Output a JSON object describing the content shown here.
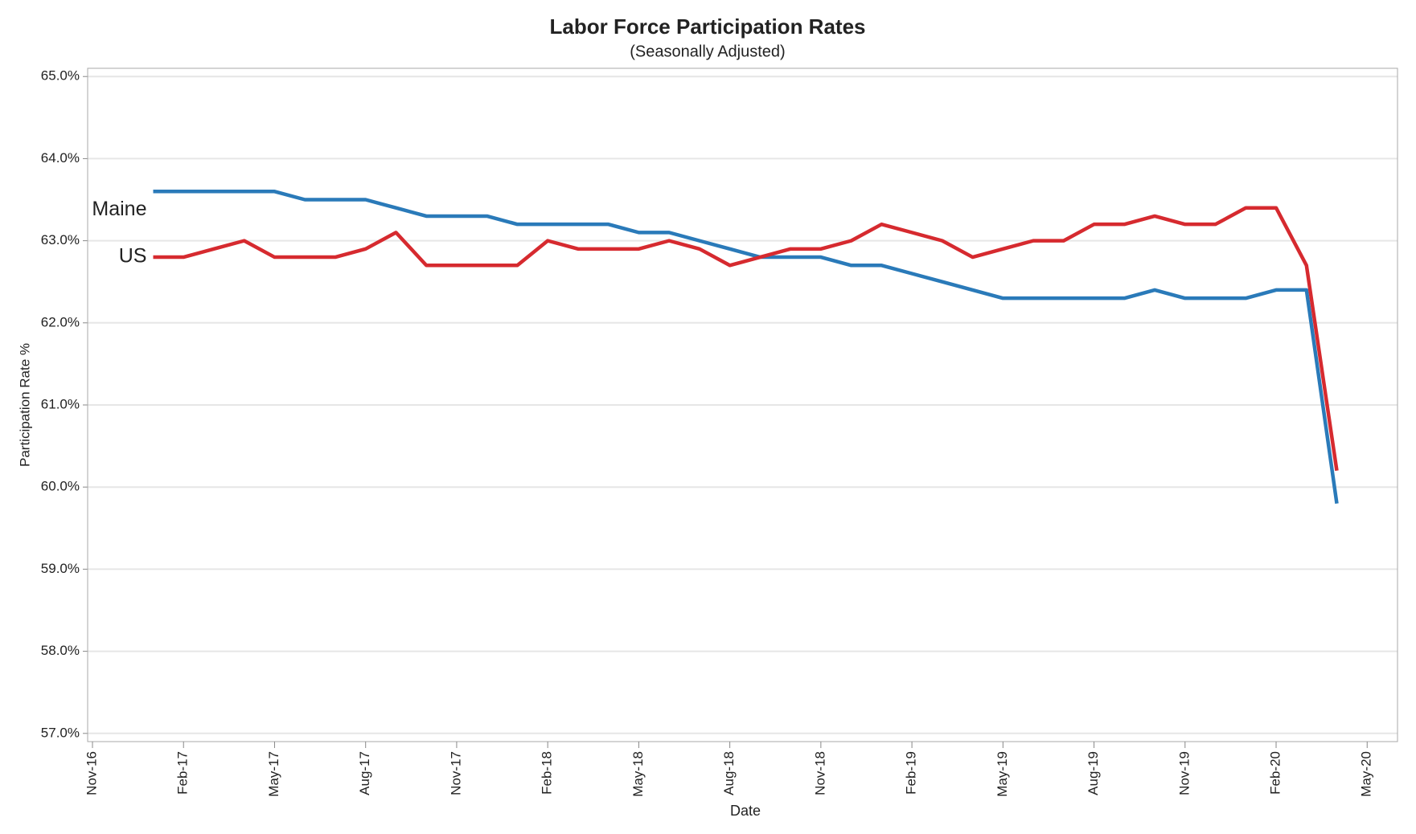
{
  "chart_data": {
    "type": "line",
    "title": "Labor Force Participation Rates",
    "subtitle": "(Seasonally Adjusted)",
    "x_label": "Date",
    "y_label": "Participation Rate %",
    "x": [
      "2017-01",
      "2017-02",
      "2017-03",
      "2017-04",
      "2017-05",
      "2017-06",
      "2017-07",
      "2017-08",
      "2017-09",
      "2017-10",
      "2017-11",
      "2017-12",
      "2018-01",
      "2018-02",
      "2018-03",
      "2018-04",
      "2018-05",
      "2018-06",
      "2018-07",
      "2018-08",
      "2018-09",
      "2018-10",
      "2018-11",
      "2018-12",
      "2019-01",
      "2019-02",
      "2019-03",
      "2019-04",
      "2019-05",
      "2019-06",
      "2019-07",
      "2019-08",
      "2019-09",
      "2019-10",
      "2019-11",
      "2019-12",
      "2020-01",
      "2020-02",
      "2020-03",
      "2020-04"
    ],
    "series": [
      {
        "name": "Maine",
        "color": "#2a7ab9",
        "values": [
          63.6,
          63.6,
          63.6,
          63.6,
          63.6,
          63.5,
          63.5,
          63.5,
          63.4,
          63.3,
          63.3,
          63.3,
          63.2,
          63.2,
          63.2,
          63.2,
          63.1,
          63.1,
          63.0,
          62.9,
          62.8,
          62.8,
          62.8,
          62.7,
          62.7,
          62.6,
          62.5,
          62.4,
          62.3,
          62.3,
          62.3,
          62.3,
          62.3,
          62.4,
          62.3,
          62.3,
          62.3,
          62.4,
          62.4,
          59.8
        ]
      },
      {
        "name": "US",
        "color": "#d62a2f",
        "values": [
          62.8,
          62.8,
          62.9,
          63.0,
          62.8,
          62.8,
          62.8,
          62.9,
          63.1,
          62.7,
          62.7,
          62.7,
          62.7,
          63.0,
          62.9,
          62.9,
          62.9,
          63.0,
          62.9,
          62.7,
          62.8,
          62.9,
          62.9,
          63.0,
          63.2,
          63.1,
          63.0,
          62.8,
          62.9,
          63.0,
          63.0,
          63.2,
          63.2,
          63.3,
          63.2,
          63.2,
          63.4,
          63.4,
          62.7,
          60.2
        ]
      }
    ],
    "xlim": [
      "2016-11",
      "2020-06"
    ],
    "xticks": [
      {
        "value": "2016-11",
        "label": "Nov-16"
      },
      {
        "value": "2017-02",
        "label": "Feb-17"
      },
      {
        "value": "2017-05",
        "label": "May-17"
      },
      {
        "value": "2017-08",
        "label": "Aug-17"
      },
      {
        "value": "2017-11",
        "label": "Nov-17"
      },
      {
        "value": "2018-02",
        "label": "Feb-18"
      },
      {
        "value": "2018-05",
        "label": "May-18"
      },
      {
        "value": "2018-08",
        "label": "Aug-18"
      },
      {
        "value": "2018-11",
        "label": "Nov-18"
      },
      {
        "value": "2019-02",
        "label": "Feb-19"
      },
      {
        "value": "2019-05",
        "label": "May-19"
      },
      {
        "value": "2019-08",
        "label": "Aug-19"
      },
      {
        "value": "2019-11",
        "label": "Nov-19"
      },
      {
        "value": "2020-02",
        "label": "Feb-20"
      },
      {
        "value": "2020-05",
        "label": "May-20"
      }
    ],
    "ylim": [
      56.9,
      65.1
    ],
    "yticks": [
      {
        "value": 57,
        "label": "57.0%"
      },
      {
        "value": 58,
        "label": "58.0%"
      },
      {
        "value": 59,
        "label": "59.0%"
      },
      {
        "value": 60,
        "label": "60.0%"
      },
      {
        "value": 61,
        "label": "61.0%"
      },
      {
        "value": 62,
        "label": "62.0%"
      },
      {
        "value": 63,
        "label": "63.0%"
      },
      {
        "value": 64,
        "label": "64.0%"
      },
      {
        "value": 65,
        "label": "65.0%"
      }
    ],
    "grid": true
  }
}
